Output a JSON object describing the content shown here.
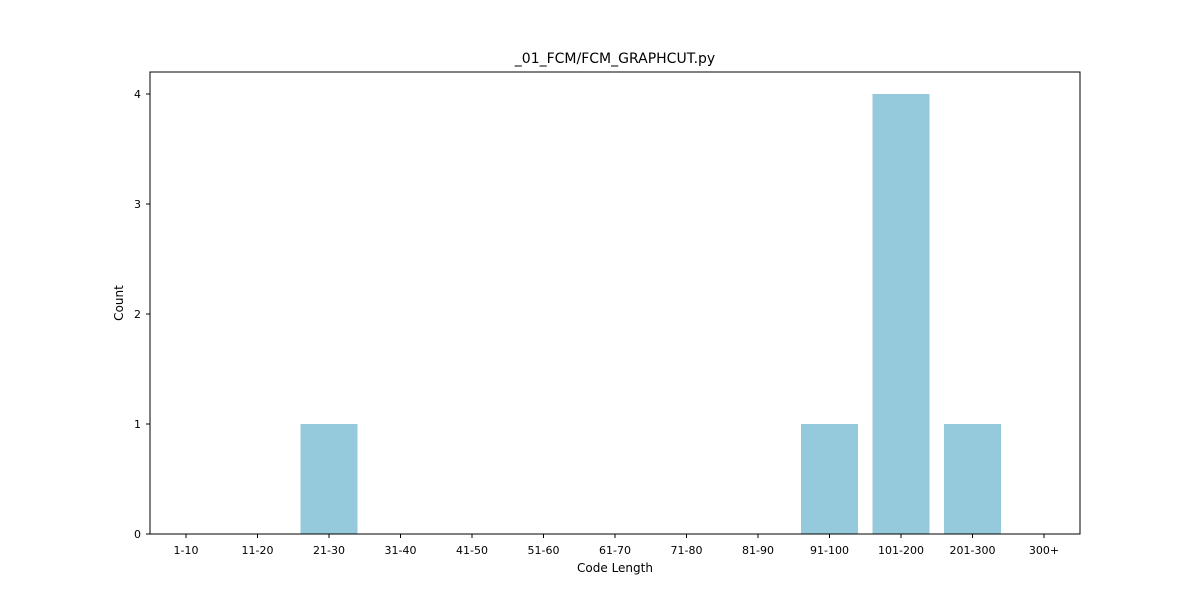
{
  "chart_data": {
    "type": "bar",
    "title": "_01_FCM/FCM_GRAPHCUT.py",
    "xlabel": "Code Length",
    "ylabel": "Count",
    "categories": [
      "1-10",
      "11-20",
      "21-30",
      "31-40",
      "41-50",
      "51-60",
      "61-70",
      "71-80",
      "81-90",
      "91-100",
      "101-200",
      "201-300",
      "300+"
    ],
    "values": [
      0,
      0,
      1,
      0,
      0,
      0,
      0,
      0,
      0,
      1,
      4,
      1,
      0
    ],
    "ylim": [
      0,
      4.2
    ],
    "yticks": [
      "0",
      "1",
      "2",
      "3",
      "4"
    ],
    "grid": false,
    "bar_color": "#95c9dc"
  }
}
